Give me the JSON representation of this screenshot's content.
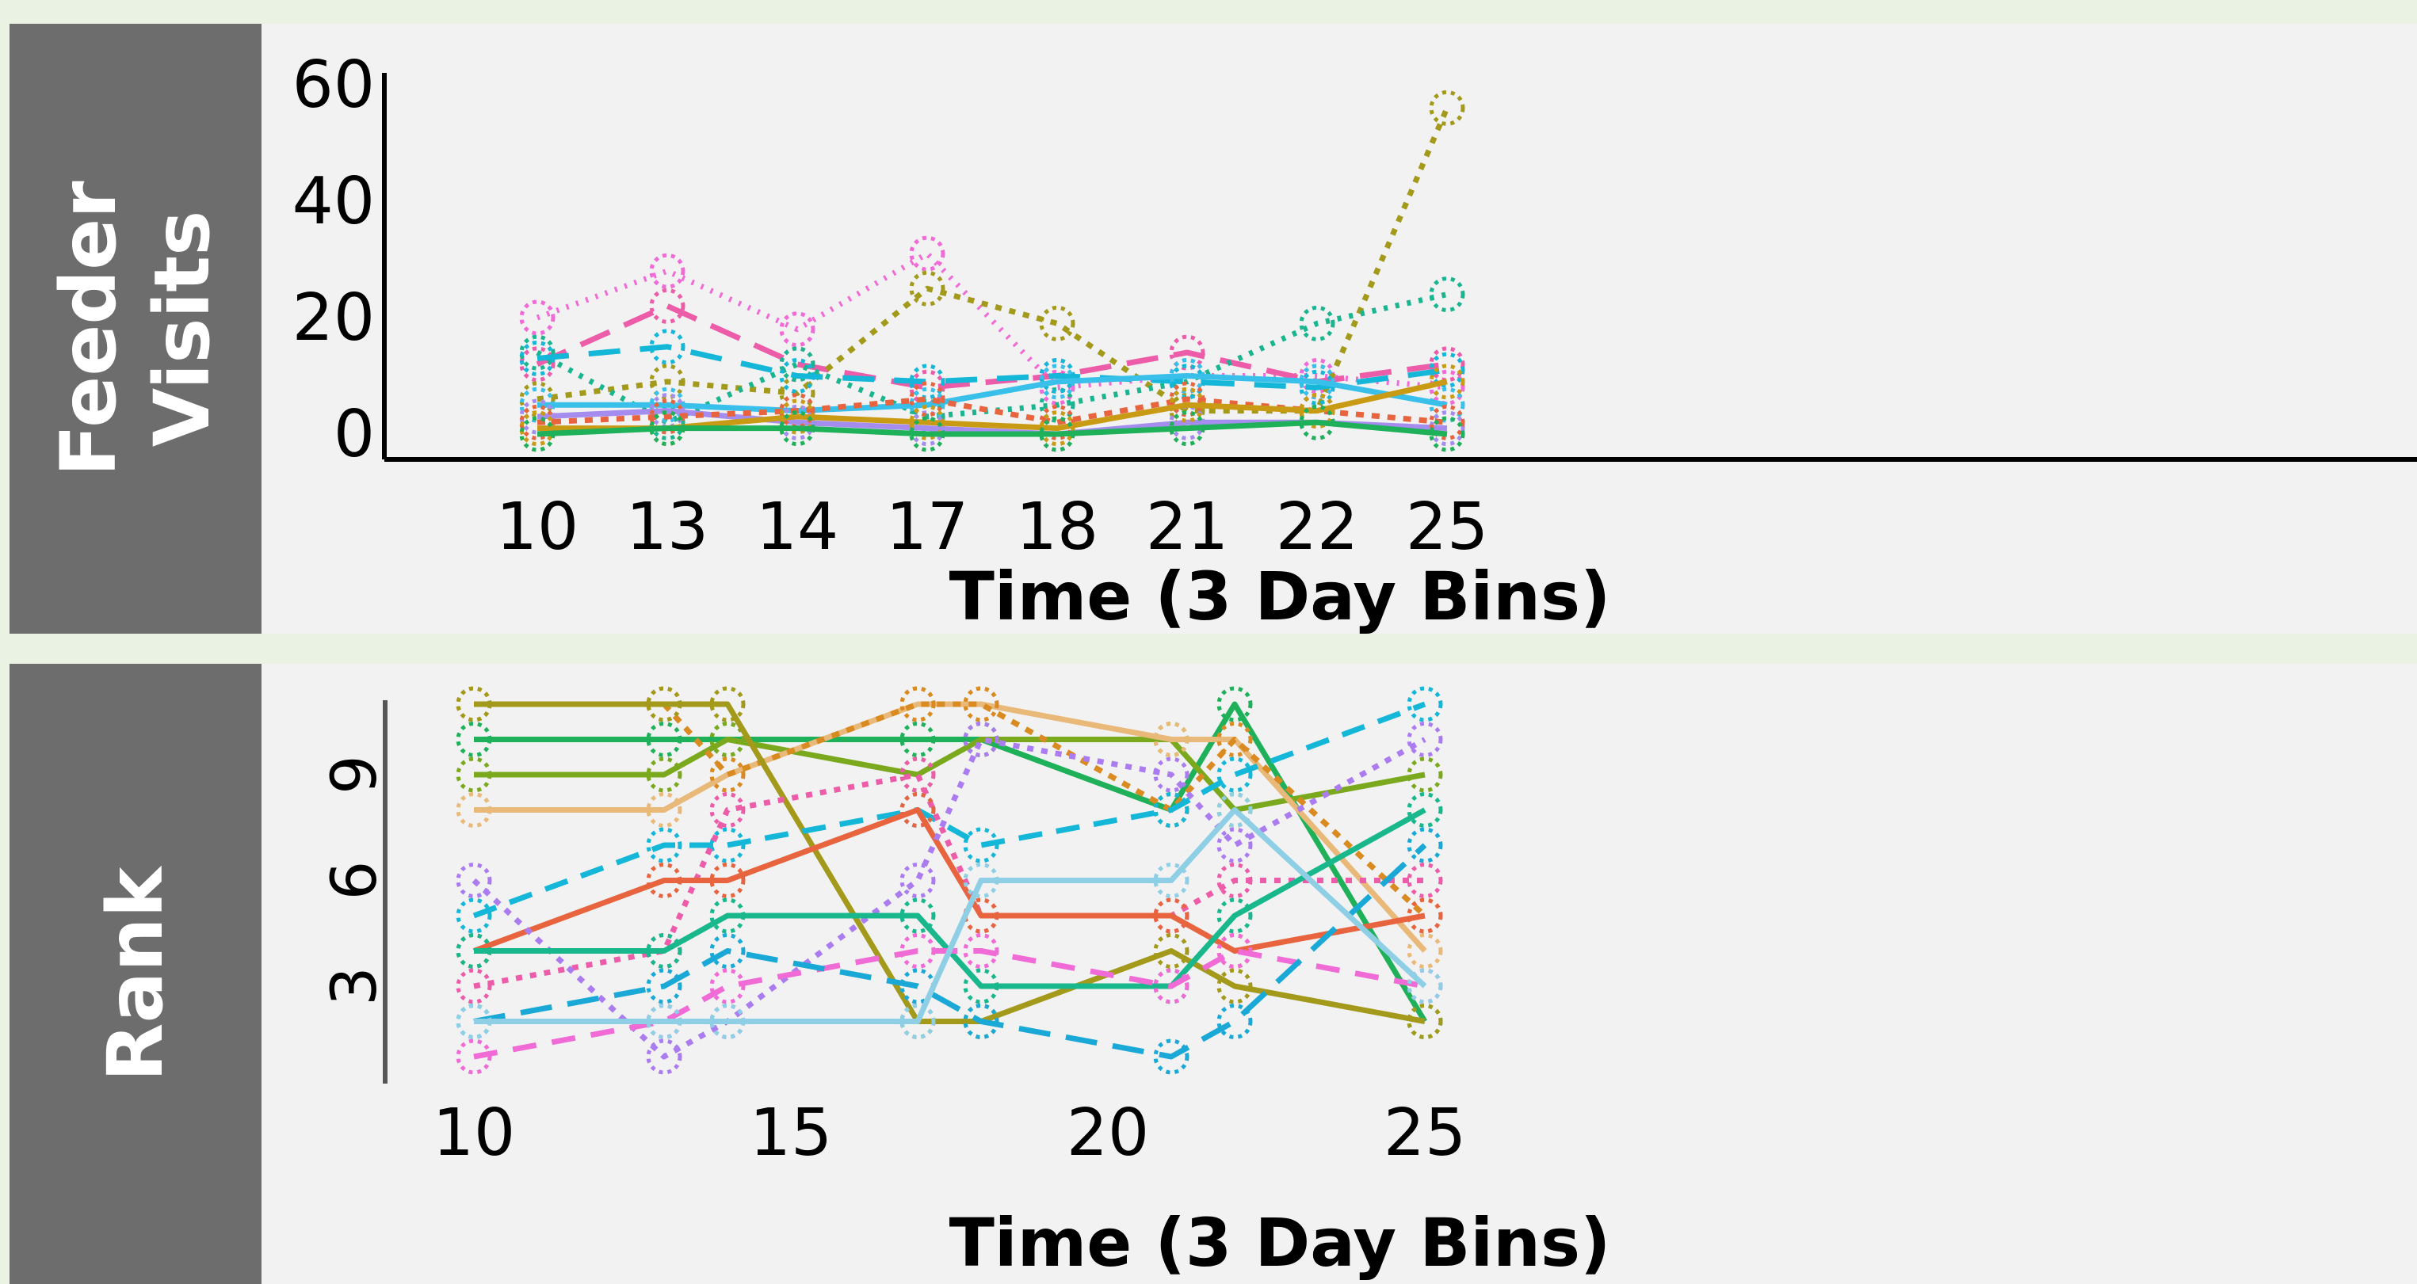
{
  "chart_data": [
    {
      "type": "line",
      "side_label": [
        "Feeder",
        "Visits"
      ],
      "xlabel": "Time (3 Day Bins)",
      "x_type": "category",
      "categories": [
        "10",
        "13",
        "14",
        "17",
        "18",
        "21",
        "22",
        "25"
      ],
      "y_ticks": [
        0,
        20,
        40,
        60
      ],
      "ylim": [
        0,
        60
      ],
      "grid": false,
      "series": [
        {
          "color": "#f06bd6",
          "dash": "3,10",
          "values": [
            20,
            28,
            18,
            31,
            8,
            10,
            10,
            8
          ]
        },
        {
          "color": "#ec5ca8",
          "dash": "40,20",
          "values": [
            12,
            22,
            12,
            8,
            10,
            14,
            9,
            12
          ]
        },
        {
          "color": "#a3991a",
          "dash": "8,10",
          "values": [
            6,
            9,
            7,
            25,
            19,
            4,
            4,
            56
          ]
        },
        {
          "color": "#1ab58f",
          "dash": "5,10",
          "values": [
            14,
            2,
            12,
            3,
            5,
            9,
            19,
            24
          ]
        },
        {
          "color": "#15b7d9",
          "dash": "40,25",
          "values": [
            13,
            15,
            10,
            9,
            10,
            9,
            8,
            11
          ]
        },
        {
          "color": "#38c0ea",
          "dash": "none",
          "values": [
            5,
            5,
            4,
            5,
            9,
            10,
            9,
            5
          ]
        },
        {
          "color": "#a58df0",
          "dash": "none",
          "values": [
            3,
            4,
            2,
            1,
            0,
            2,
            2,
            1
          ]
        },
        {
          "color": "#e8643f",
          "dash": "10,10",
          "values": [
            2,
            3,
            4,
            6,
            2,
            6,
            4,
            2
          ]
        },
        {
          "color": "#c99a14",
          "dash": "none",
          "values": [
            1,
            1,
            3,
            2,
            1,
            5,
            4,
            9
          ]
        },
        {
          "color": "#1fb05a",
          "dash": "none",
          "values": [
            0,
            1,
            1,
            0,
            0,
            1,
            2,
            0
          ]
        }
      ]
    },
    {
      "type": "line",
      "side_label": [
        "Rank"
      ],
      "xlabel": "Time (3 Day Bins)",
      "x_type": "numeric",
      "x": [
        10,
        13,
        14,
        17,
        18,
        21,
        22,
        25
      ],
      "x_ticks": [
        10,
        15,
        20,
        25
      ],
      "y_ticks": [
        3,
        6,
        9
      ],
      "ylim": [
        1,
        11
      ],
      "grid": false,
      "series": [
        {
          "color": "#1fb05a",
          "dash": "none",
          "values": [
            10,
            10,
            10,
            10,
            10,
            8,
            11,
            2
          ]
        },
        {
          "color": "#7ba91e",
          "dash": "none",
          "values": [
            9,
            9,
            10,
            9,
            10,
            10,
            8,
            9
          ]
        },
        {
          "color": "#e9b97a",
          "dash": "none",
          "values": [
            8,
            8,
            9,
            11,
            11,
            10,
            10,
            4
          ]
        },
        {
          "color": "#d98a20",
          "dash": "10,10",
          "values": [
            11,
            11,
            9,
            11,
            11,
            8,
            10,
            5
          ]
        },
        {
          "color": "#a3991a",
          "dash": "none",
          "values": [
            11,
            11,
            11,
            2,
            2,
            4,
            3,
            2
          ]
        },
        {
          "color": "#15b7d9",
          "dash": "30,18",
          "values": [
            5,
            7,
            7,
            8,
            7,
            8,
            9,
            11
          ]
        },
        {
          "color": "#ec5ca8",
          "dash": "8,10",
          "values": [
            3,
            4,
            8,
            9,
            5,
            5,
            6,
            6
          ]
        },
        {
          "color": "#e8643f",
          "dash": "none",
          "values": [
            4,
            6,
            6,
            8,
            5,
            5,
            4,
            5
          ]
        },
        {
          "color": "#ab7cf0",
          "dash": "8,10",
          "values": [
            6,
            1,
            2,
            6,
            10,
            9,
            7,
            10
          ]
        },
        {
          "color": "#19b78c",
          "dash": "none",
          "values": [
            4,
            4,
            5,
            5,
            3,
            3,
            5,
            8
          ]
        },
        {
          "color": "#f06bd6",
          "dash": "30,20",
          "values": [
            1,
            2,
            3,
            4,
            4,
            3,
            4,
            3
          ]
        },
        {
          "color": "#1aa9d6",
          "dash": "40,20",
          "values": [
            2,
            3,
            4,
            3,
            2,
            1,
            2,
            7
          ]
        },
        {
          "color": "#8ecfe6",
          "dash": "none",
          "values": [
            2,
            2,
            2,
            2,
            6,
            6,
            8,
            3
          ]
        }
      ]
    }
  ]
}
